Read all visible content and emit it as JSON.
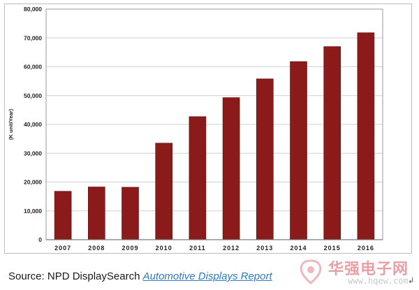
{
  "chart_data": {
    "type": "bar",
    "categories": [
      "2007",
      "2008",
      "2009",
      "2010",
      "2011",
      "2012",
      "2013",
      "2014",
      "2015",
      "2016"
    ],
    "values": [
      16800,
      18300,
      18200,
      33500,
      42700,
      49300,
      55800,
      61800,
      67000,
      71800
    ],
    "ylabel": "(K unit/Year)",
    "ylim": [
      0,
      80000
    ],
    "yticks": [
      0,
      10000,
      20000,
      30000,
      40000,
      50000,
      60000,
      70000,
      80000
    ],
    "ytick_labels": [
      "0",
      "10,000",
      "20,000",
      "30,000",
      "40,000",
      "50,000",
      "60,000",
      "70,000",
      "80,000"
    ],
    "grid": "horizontal",
    "bar_color": "#8b1a1a"
  },
  "source": {
    "prefix": "Source: NPD DisplaySearch ",
    "report": "Automotive Displays Report"
  },
  "watermark": {
    "site_name": "华强电子网",
    "url": "www.hqew.com",
    "mark": "↲"
  }
}
